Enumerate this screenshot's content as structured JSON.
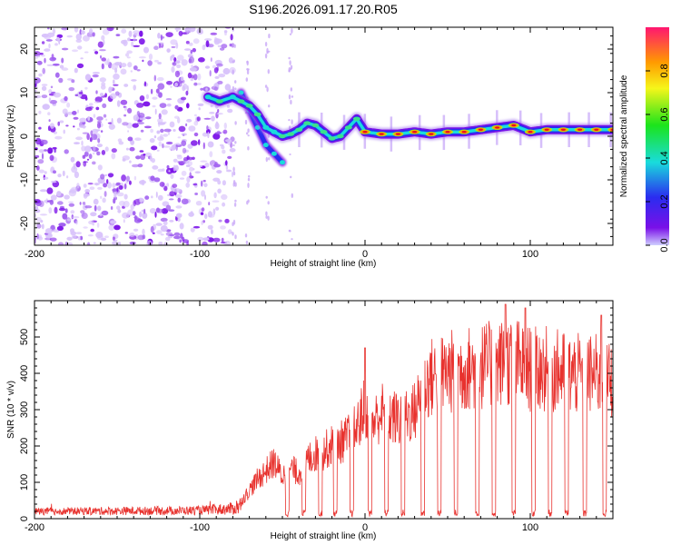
{
  "title": "S196.2026.091.17.20.R05",
  "colors": {
    "snr_line": "#e8322e",
    "ridge_purple": "#7a10e8",
    "ridge_blue": "#2a2cf0",
    "ridge_cyan": "#19dcdc",
    "ridge_orange": "#ff9a00",
    "ridge_red": "#e81020"
  },
  "chart_data": [
    {
      "type": "heatmap",
      "title": "S196.2026.091.17.20.R05",
      "xlabel": "Height of straight line (km)",
      "ylabel": "Frequency (Hz)",
      "xlim": [
        -200,
        150
      ],
      "ylim": [
        -25,
        25
      ],
      "xticks": [
        -200,
        -100,
        0,
        100
      ],
      "yticks": [
        -20,
        -10,
        0,
        10,
        20
      ],
      "colorbar": {
        "label": "Normalized spectral amplitude",
        "range": [
          0,
          1
        ],
        "ticks": [
          0.0,
          0.2,
          0.4,
          0.6,
          0.8
        ],
        "colormap": "rainbow (purple to red)"
      },
      "ridge": {
        "x": [
          -95,
          -88,
          -80,
          -75,
          -70,
          -65,
          -60,
          -55,
          -50,
          -45,
          -40,
          -35,
          -30,
          -25,
          -20,
          -15,
          -10,
          -5,
          0,
          10,
          20,
          30,
          40,
          50,
          60,
          70,
          80,
          90,
          100,
          110,
          120,
          130,
          140,
          150
        ],
        "y": [
          9,
          8,
          9,
          8,
          7,
          5,
          2,
          1,
          0,
          0.5,
          1.5,
          3,
          2.5,
          1,
          -0.5,
          0,
          2,
          4,
          1,
          0.5,
          0.5,
          1,
          0.5,
          1,
          1,
          1.5,
          2,
          2.5,
          1,
          1.5,
          1.5,
          1.5,
          1.5,
          1.5
        ],
        "amplitude": [
          0.3,
          0.55,
          0.45,
          0.5,
          0.55,
          0.5,
          0.4,
          0.4,
          0.5,
          0.55,
          0.6,
          0.65,
          0.55,
          0.6,
          0.5,
          0.55,
          0.6,
          0.55,
          0.8,
          0.9,
          0.85,
          0.85,
          0.8,
          0.8,
          0.8,
          0.85,
          0.9,
          0.9,
          0.75,
          0.85,
          0.85,
          0.8,
          0.85,
          0.85
        ]
      },
      "branch": {
        "x": [
          -75,
          -70,
          -65,
          -60,
          -55,
          -50
        ],
        "y": [
          10,
          6,
          2,
          -2,
          -4,
          -6
        ]
      },
      "noise_region_x": [
        -200,
        -80
      ]
    },
    {
      "type": "line",
      "xlabel": "Height of straight line (km)",
      "ylabel": "SNR (10 * v/v)",
      "xlim": [
        -200,
        150
      ],
      "ylim": [
        0,
        600
      ],
      "xticks": [
        -200,
        -100,
        0,
        100
      ],
      "yticks": [
        0,
        100,
        200,
        300,
        400,
        500
      ],
      "envelope": {
        "x": [
          -200,
          -100,
          -80,
          -75,
          -70,
          -65,
          -60,
          -55,
          -50,
          -45,
          -40,
          -35,
          -30,
          -25,
          -20,
          -15,
          -10,
          -5,
          0,
          5,
          10,
          20,
          30,
          35,
          40,
          50,
          60,
          70,
          80,
          90,
          100,
          110,
          120,
          130,
          140,
          150
        ],
        "y": [
          25,
          30,
          40,
          60,
          100,
          140,
          170,
          200,
          150,
          180,
          160,
          210,
          230,
          240,
          260,
          270,
          290,
          320,
          400,
          340,
          380,
          350,
          380,
          460,
          500,
          520,
          530,
          540,
          550,
          560,
          530,
          530,
          520,
          510,
          510,
          490
        ]
      },
      "peaks": [
        {
          "x": 0,
          "y": 470
        },
        {
          "x": 85,
          "y": 590
        },
        {
          "x": 97,
          "y": 580
        },
        {
          "x": 143,
          "y": 560
        }
      ],
      "dropouts_x": [
        -47,
        -37,
        -27,
        -18,
        -8,
        3,
        13,
        23,
        35,
        45,
        55,
        68,
        78,
        90,
        102,
        112,
        122,
        133,
        145
      ]
    }
  ]
}
